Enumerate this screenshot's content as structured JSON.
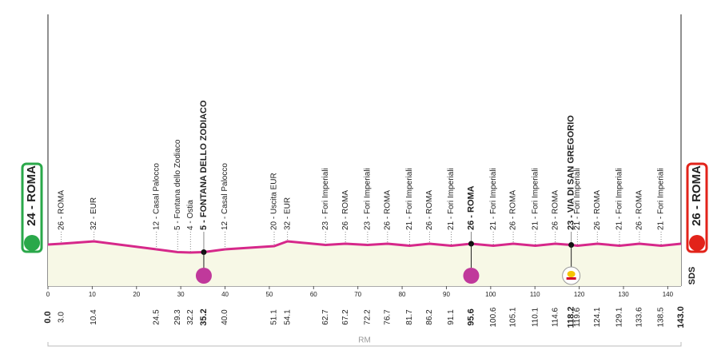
{
  "chart_data": {
    "type": "profile",
    "start": "24 - ROMA",
    "finish": "26 - ROMA",
    "region": "RM",
    "brand": "SDS",
    "xlim": [
      0,
      143
    ],
    "xticks": [
      0,
      10,
      20,
      30,
      40,
      50,
      60,
      70,
      80,
      90,
      100,
      110,
      120,
      130,
      140
    ],
    "start_km": {
      "value": 0,
      "label": "0.0"
    },
    "finish_km": {
      "value": 143,
      "label": "143.0"
    },
    "start_altitude": 24,
    "finish_altitude": 26,
    "line_color": "#d6288a",
    "fill_color": "#f7f8e6",
    "waypoints": [
      {
        "km": {
          "value": 3,
          "label": "3.0"
        },
        "altitude": 26,
        "label": "26 - ROMA"
      },
      {
        "km": 10.4,
        "altitude": 32,
        "label": "32 - EUR"
      },
      {
        "km": 24.5,
        "altitude": 12,
        "label": "12 - Casal Palocco"
      },
      {
        "km": 29.3,
        "altitude": 5,
        "label": "5 - Fontana dello Zodiaco"
      },
      {
        "km": 32.2,
        "altitude": 4,
        "label": "4 - Ostia"
      },
      {
        "km": 35.2,
        "altitude": 5,
        "label": "5 - FONTANA DELLO ZODIACO",
        "marker": "sprint"
      },
      {
        "km": {
          "value": 40,
          "label": "40.0"
        },
        "altitude": 12,
        "label": "12 - Casal Palocco"
      },
      {
        "km": 51.1,
        "altitude": 20,
        "label": "20 - Uscita EUR"
      },
      {
        "km": 54.1,
        "altitude": 32,
        "label": "32 - EUR"
      },
      {
        "km": 62.7,
        "altitude": 23,
        "label": "23 - Fori Imperiali"
      },
      {
        "km": 67.2,
        "altitude": 26,
        "label": "26 - ROMA"
      },
      {
        "km": 72.2,
        "altitude": 23,
        "label": "23 - Fori Imperiali"
      },
      {
        "km": 76.7,
        "altitude": 26,
        "label": "26 - ROMA"
      },
      {
        "km": 81.7,
        "altitude": 21,
        "label": "21 - Fori Imperiali"
      },
      {
        "km": 86.2,
        "altitude": 26,
        "label": "26 - ROMA"
      },
      {
        "km": 91.1,
        "altitude": 21,
        "label": "21 - Fori Imperiali"
      },
      {
        "km": 95.6,
        "altitude": 26,
        "label": "26 - ROMA",
        "marker": "sprint"
      },
      {
        "km": 100.6,
        "altitude": 21,
        "label": "21 - Fori Imperiali"
      },
      {
        "km": 105.1,
        "altitude": 26,
        "label": "26 - ROMA"
      },
      {
        "km": 110.1,
        "altitude": 21,
        "label": "21 - Fori Imperiali"
      },
      {
        "km": 114.6,
        "altitude": 26,
        "label": "26 - ROMA"
      },
      {
        "km": 118.2,
        "altitude": 23,
        "label": "23 - VIA DI SAN GREGORIO",
        "marker": "redbull"
      },
      {
        "km": 119.6,
        "altitude": 21,
        "label": "21 - Fori Imperiali"
      },
      {
        "km": 124.1,
        "altitude": 26,
        "label": "26 - ROMA"
      },
      {
        "km": 129.1,
        "altitude": 21,
        "label": "21 - Fori Imperiali"
      },
      {
        "km": 133.6,
        "altitude": 26,
        "label": "26 - ROMA"
      },
      {
        "km": 138.5,
        "altitude": 21,
        "label": "21 - Fori Imperiali"
      }
    ]
  }
}
